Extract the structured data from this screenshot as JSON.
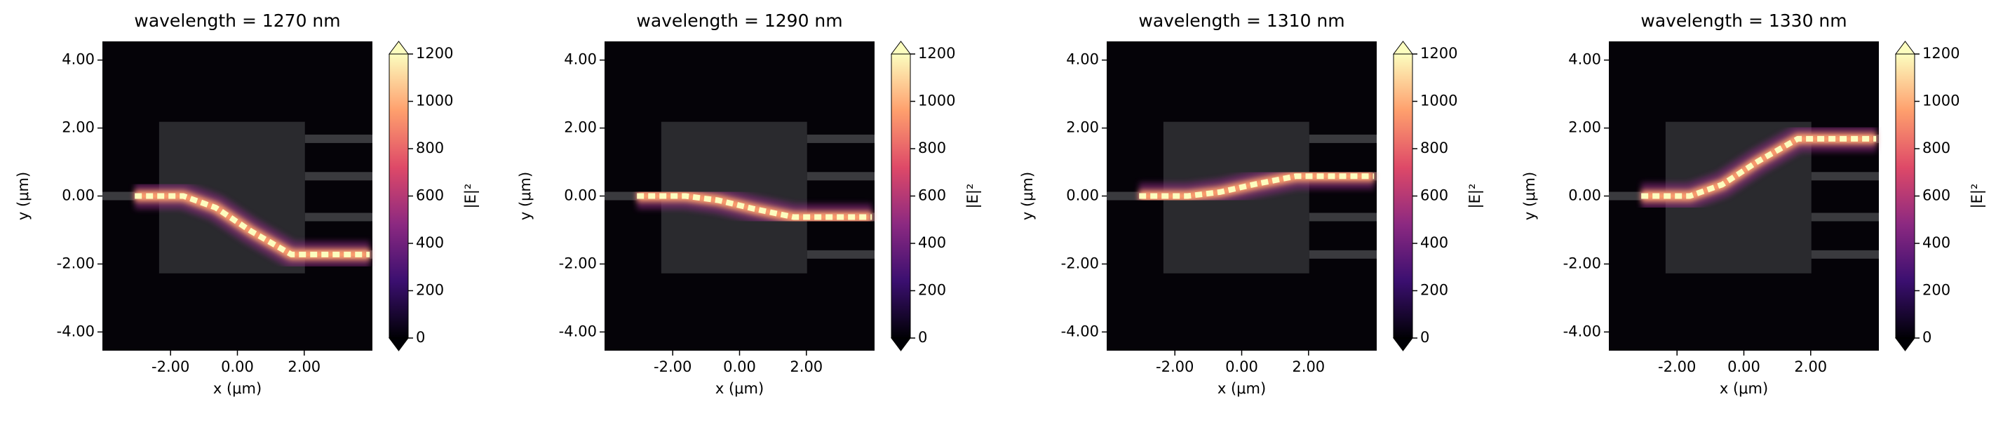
{
  "chart_data": [
    {
      "type": "heatmap",
      "title": "wavelength = 1270 nm",
      "xlabel": "x (μm)",
      "ylabel": "y (μm)",
      "xlim": [
        -4.04,
        4.04
      ],
      "ylim": [
        -4.55,
        4.55
      ],
      "xticks": [
        {
          "value": -2,
          "label": "-2.00"
        },
        {
          "value": 0,
          "label": "0.00"
        },
        {
          "value": 2,
          "label": "2.00"
        }
      ],
      "yticks": [
        {
          "value": 4,
          "label": "4.00"
        },
        {
          "value": 2,
          "label": "2.00"
        },
        {
          "value": 0,
          "label": "0.00"
        },
        {
          "value": -2,
          "label": "-2.00"
        },
        {
          "value": -4,
          "label": "-4.00"
        }
      ],
      "colorbar": {
        "label": "|E|²",
        "lim": [
          0,
          1200
        ],
        "ticks": [
          0,
          200,
          400,
          600,
          800,
          1000,
          1200
        ],
        "colormap": [
          "#000004",
          "#3b0f70",
          "#8c2981",
          "#de4968",
          "#fe9f6d",
          "#fcfdbf"
        ]
      }
    },
    {
      "type": "heatmap",
      "title": "wavelength = 1290 nm",
      "xlabel": "x (μm)",
      "ylabel": "y (μm)",
      "xlim": [
        -4.04,
        4.04
      ],
      "ylim": [
        -4.55,
        4.55
      ],
      "xticks": [
        {
          "value": -2,
          "label": "-2.00"
        },
        {
          "value": 0,
          "label": "0.00"
        },
        {
          "value": 2,
          "label": "2.00"
        }
      ],
      "yticks": [
        {
          "value": 4,
          "label": "4.00"
        },
        {
          "value": 2,
          "label": "2.00"
        },
        {
          "value": 0,
          "label": "0.00"
        },
        {
          "value": -2,
          "label": "-2.00"
        },
        {
          "value": -4,
          "label": "-4.00"
        }
      ],
      "colorbar": {
        "label": "|E|²",
        "lim": [
          0,
          1200
        ],
        "ticks": [
          0,
          200,
          400,
          600,
          800,
          1000,
          1200
        ],
        "colormap": [
          "#000004",
          "#3b0f70",
          "#8c2981",
          "#de4968",
          "#fe9f6d",
          "#fcfdbf"
        ]
      }
    },
    {
      "type": "heatmap",
      "title": "wavelength = 1310 nm",
      "xlabel": "x (μm)",
      "ylabel": "y (μm)",
      "xlim": [
        -4.04,
        4.04
      ],
      "ylim": [
        -4.55,
        4.55
      ],
      "xticks": [
        {
          "value": -2,
          "label": "-2.00"
        },
        {
          "value": 0,
          "label": "0.00"
        },
        {
          "value": 2,
          "label": "2.00"
        }
      ],
      "yticks": [
        {
          "value": 4,
          "label": "4.00"
        },
        {
          "value": 2,
          "label": "2.00"
        },
        {
          "value": 0,
          "label": "0.00"
        },
        {
          "value": -2,
          "label": "-2.00"
        },
        {
          "value": -4,
          "label": "-4.00"
        }
      ],
      "colorbar": {
        "label": "|E|²",
        "lim": [
          0,
          1200
        ],
        "ticks": [
          0,
          200,
          400,
          600,
          800,
          1000,
          1200
        ],
        "colormap": [
          "#000004",
          "#3b0f70",
          "#8c2981",
          "#de4968",
          "#fe9f6d",
          "#fcfdbf"
        ]
      }
    },
    {
      "type": "heatmap",
      "title": "wavelength = 1330 nm",
      "xlabel": "x (μm)",
      "ylabel": "y (μm)",
      "xlim": [
        -4.04,
        4.04
      ],
      "ylim": [
        -4.55,
        4.55
      ],
      "xticks": [
        {
          "value": -2,
          "label": "-2.00"
        },
        {
          "value": 0,
          "label": "0.00"
        },
        {
          "value": 2,
          "label": "2.00"
        }
      ],
      "yticks": [
        {
          "value": 4,
          "label": "4.00"
        },
        {
          "value": 2,
          "label": "2.00"
        },
        {
          "value": 0,
          "label": "0.00"
        },
        {
          "value": -2,
          "label": "-2.00"
        },
        {
          "value": -4,
          "label": "-4.00"
        }
      ],
      "colorbar": {
        "label": "|E|²",
        "lim": [
          0,
          1200
        ],
        "ticks": [
          0,
          200,
          400,
          600,
          800,
          1000,
          1200
        ],
        "colormap": [
          "#000004",
          "#3b0f70",
          "#8c2981",
          "#de4968",
          "#fe9f6d",
          "#fcfdbf"
        ]
      }
    }
  ]
}
